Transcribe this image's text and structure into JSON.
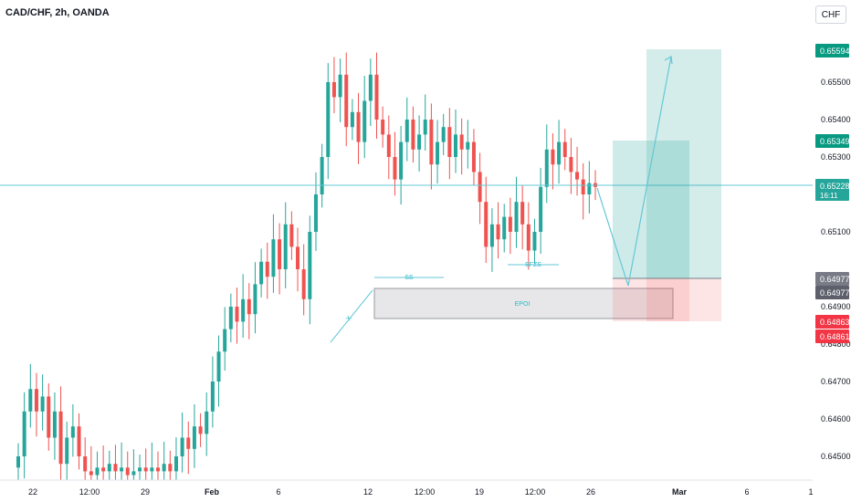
{
  "symbol_title": "CAD/CHF, 2h, OANDA",
  "currency_button": "CHF",
  "colors": {
    "up": "#26a69a",
    "down": "#ef5350",
    "profit_zone": "rgba(38,166,154,0.2)",
    "loss_zone": "rgba(239,83,80,0.18)",
    "line": "#63c7d6",
    "bg": "#ffffff",
    "axis_text": "#131722"
  },
  "chart_data": {
    "type": "candlestick",
    "ylim": [
      0.6445,
      0.6563
    ],
    "y_ticks": [
      "0.65500",
      "0.65400",
      "0.65300",
      "0.65100",
      "0.64900",
      "0.64800",
      "0.64700",
      "0.64600",
      "0.64500"
    ],
    "x_ticks": [
      "22",
      "12:00",
      "29",
      "Feb",
      "6",
      "12",
      "12:00",
      "19",
      "12:00",
      "26",
      "Mar",
      "6",
      "1"
    ],
    "price_labels": [
      {
        "text": "0.65594",
        "color": "#089981",
        "value": 0.65594
      },
      {
        "text": "0.65349",
        "color": "#089981",
        "value": 0.65349
      },
      {
        "text": "0.65228",
        "sub": "16:11",
        "color": "#26a69a",
        "value": 0.65228
      },
      {
        "text": "0.64977",
        "color": "#787b86",
        "value": 0.64977
      },
      {
        "text": "0.64977",
        "color": "#5d606b",
        "value": 0.64977
      },
      {
        "text": "0.64863",
        "color": "#f23645",
        "value": 0.64863
      },
      {
        "text": "0.64861",
        "color": "#f23645",
        "value": 0.64861
      }
    ],
    "annotations": [
      "SS",
      "EPOI",
      "SFZS",
      "X"
    ],
    "close_path": [
      0.645,
      0.6462,
      0.6468,
      0.6462,
      0.6466,
      0.6455,
      0.6462,
      0.6448,
      0.6455,
      0.6458,
      0.645,
      0.6446,
      0.6445,
      0.6447,
      0.6446,
      0.6448,
      0.6446,
      0.6447,
      0.6445,
      0.6446,
      0.6447,
      0.6446,
      0.6447,
      0.6446,
      0.6448,
      0.6446,
      0.645,
      0.6455,
      0.6452,
      0.6458,
      0.6456,
      0.6462,
      0.647,
      0.6478,
      0.6484,
      0.649,
      0.6486,
      0.6492,
      0.6488,
      0.6496,
      0.6502,
      0.6498,
      0.6508,
      0.65,
      0.6512,
      0.6506,
      0.65,
      0.6492,
      0.651,
      0.652,
      0.653,
      0.655,
      0.6546,
      0.6552,
      0.6538,
      0.6542,
      0.6534,
      0.6545,
      0.6552,
      0.654,
      0.6536,
      0.653,
      0.6524,
      0.6534,
      0.654,
      0.6532,
      0.6536,
      0.654,
      0.6528,
      0.6534,
      0.6538,
      0.653,
      0.6536,
      0.6532,
      0.6534,
      0.6526,
      0.6518,
      0.6506,
      0.6512,
      0.6508,
      0.6514,
      0.651,
      0.6518,
      0.6512,
      0.6505,
      0.651,
      0.6522,
      0.6532,
      0.6528,
      0.6534,
      0.653,
      0.6526,
      0.6524,
      0.652,
      0.6523,
      0.6522
    ]
  }
}
